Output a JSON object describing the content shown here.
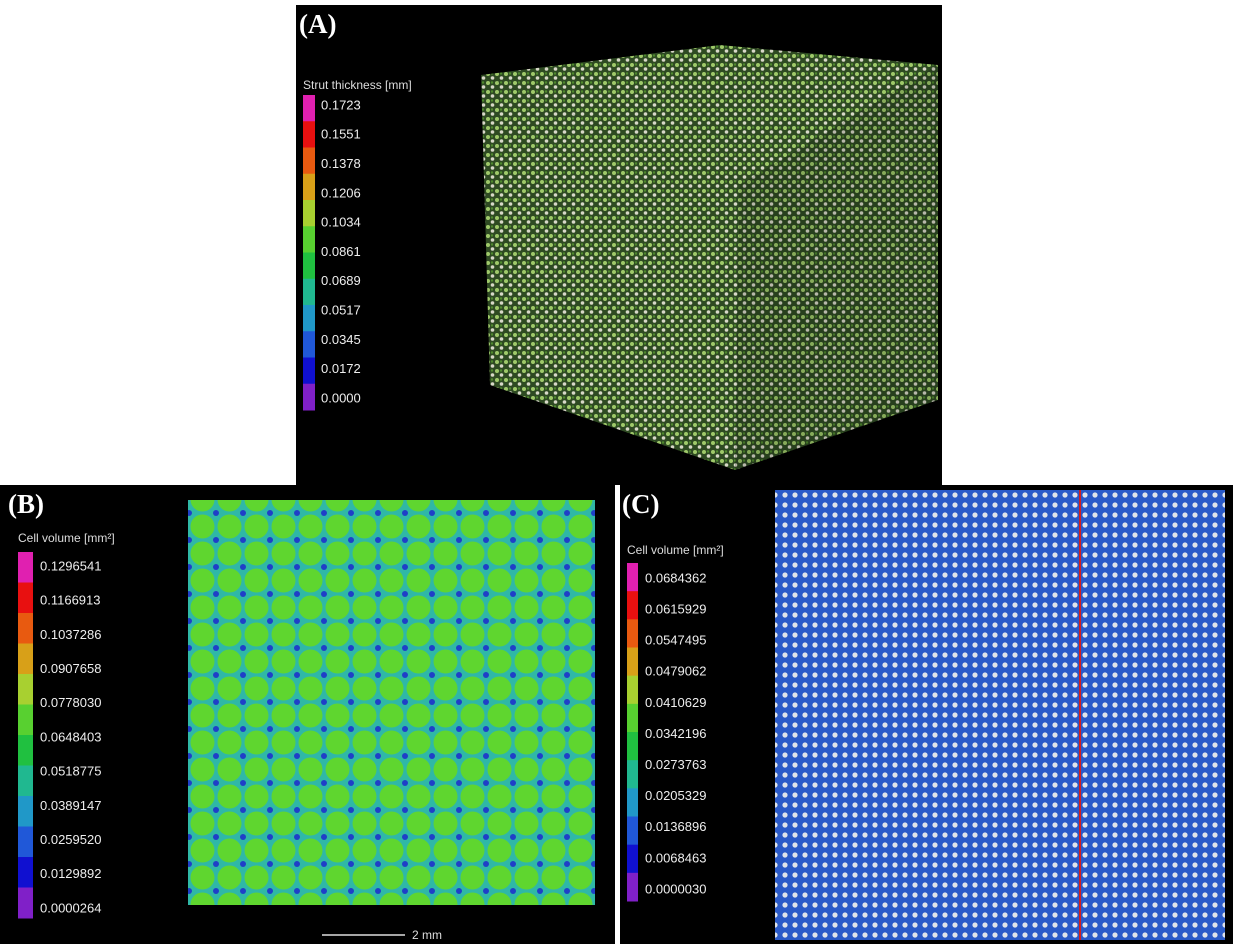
{
  "panels": [
    {
      "label": "(A)",
      "legend": {
        "title": "Strut thickness [mm]",
        "values": [
          "0.1723",
          "0.1551",
          "0.1378",
          "0.1206",
          "0.1034",
          "0.0861",
          "0.0689",
          "0.0517",
          "0.0345",
          "0.0172",
          "0.0000"
        ]
      }
    },
    {
      "label": "(B)",
      "legend": {
        "title": "Cell volume [mm²]",
        "values": [
          "0.1296541",
          "0.1166913",
          "0.1037286",
          "0.0907658",
          "0.0778030",
          "0.0648403",
          "0.0518775",
          "0.0389147",
          "0.0259520",
          "0.0129892",
          "0.0000264"
        ]
      }
    },
    {
      "label": "(C)",
      "legend": {
        "title": "Cell volume [mm²]",
        "values": [
          "0.0684362",
          "0.0615929",
          "0.0547495",
          "0.0479062",
          "0.0410629",
          "0.0342196",
          "0.0273763",
          "0.0205329",
          "0.0136896",
          "0.0068463",
          "0.0000030"
        ]
      }
    }
  ],
  "scale_bar": "2 mm"
}
